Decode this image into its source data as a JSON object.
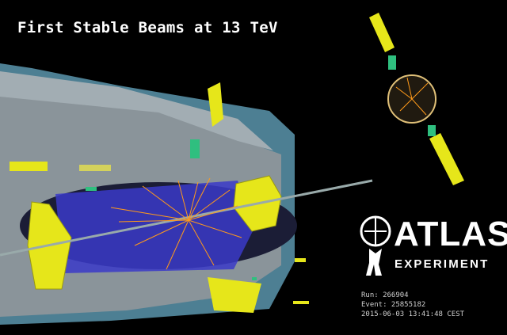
{
  "headline": "First Stable Beams at 13 TeV",
  "logo": {
    "wordmark": "ATLAS",
    "subtitle": "EXPERIMENT"
  },
  "event_info": {
    "run": "Run: 266904",
    "event": "Event: 25855182",
    "timestamp": "2015-06-03 13:41:48 CEST"
  },
  "colors": {
    "background": "#000000",
    "detector_shell": "#8a9aa3",
    "muon_chambers": "#4d7f93",
    "calorimeter": "#e6e61a",
    "inner_detector": "#3a3ac8",
    "tracks": "#ff9a1a",
    "muon_hits": "#2fbf7f"
  }
}
